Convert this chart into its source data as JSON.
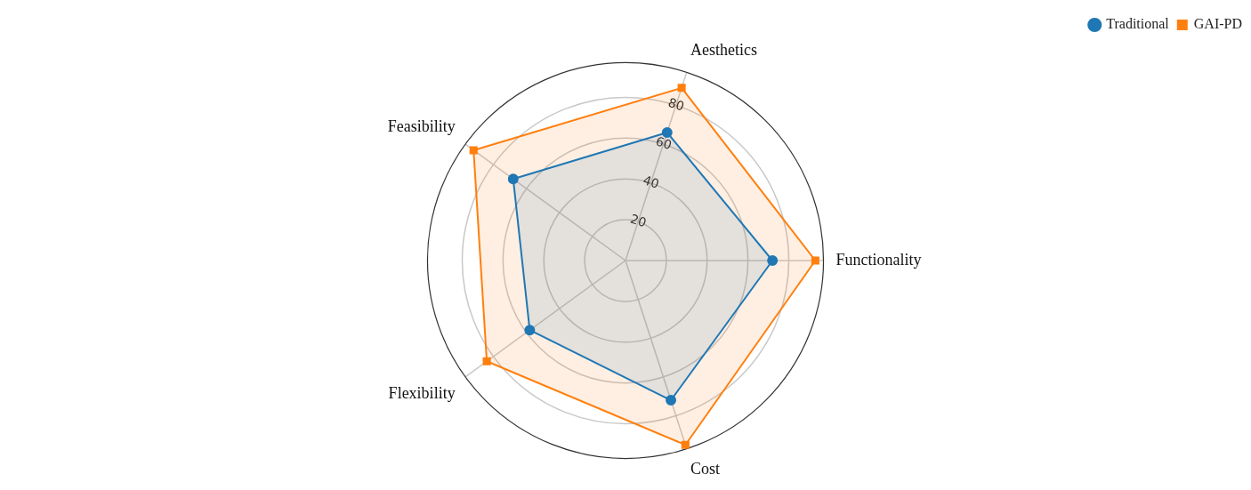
{
  "chart_data": {
    "type": "radar",
    "categories": [
      "Aesthetics",
      "Functionality",
      "Cost",
      "Flexibility",
      "Feasibility"
    ],
    "series": [
      {
        "name": "Traditional",
        "color": "#1f77b4",
        "marker": "circle",
        "values": [
          66,
          72,
          72,
          58,
          68
        ]
      },
      {
        "name": "GAI-PD",
        "color": "#ff7f0e",
        "marker": "square",
        "values": [
          89,
          93,
          95,
          84,
          92
        ]
      }
    ],
    "ylim": [
      0,
      97
    ],
    "yticks": [
      20,
      40,
      60,
      80
    ],
    "grid": true,
    "legend": "top right"
  }
}
